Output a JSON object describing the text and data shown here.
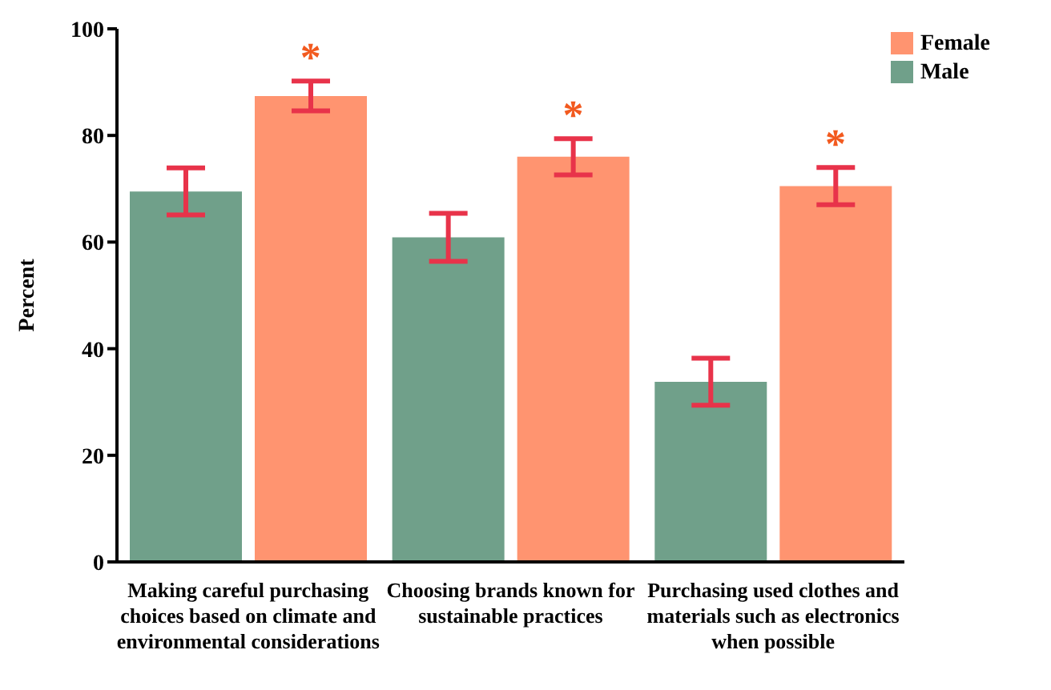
{
  "chart_data": {
    "type": "bar",
    "ylabel": "Percent",
    "categories": [
      "Making careful purchasing choices based on climate and environmental considerations",
      "Choosing brands known for sustainable practices",
      "Purchasing used clothes and materials such as electronics when possible"
    ],
    "series": [
      {
        "name": "Male",
        "color": "#70a08a",
        "values": [
          69.5,
          60.9,
          33.8
        ],
        "errors": [
          4.4,
          4.5,
          4.4
        ]
      },
      {
        "name": "Female",
        "color": "#ff9470",
        "values": [
          87.4,
          76,
          70.5
        ],
        "errors": [
          2.8,
          3.4,
          3.5
        ]
      }
    ],
    "annotations": [
      "*",
      "*",
      "*"
    ],
    "ylim": [
      0,
      100
    ],
    "yticks": [
      0,
      20,
      40,
      60,
      80,
      100
    ],
    "grid": false,
    "legend": "top right"
  }
}
